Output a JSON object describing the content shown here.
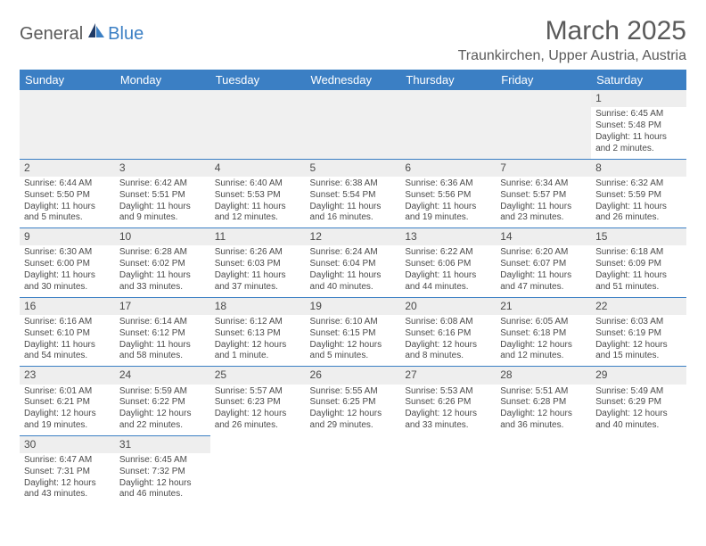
{
  "logo": {
    "text1": "General",
    "text2": "Blue"
  },
  "title": "March 2025",
  "location": "Traunkirchen, Upper Austria, Austria",
  "colors": {
    "header_bg": "#3b7fc4",
    "header_text": "#ffffff",
    "daynum_bg": "#eeeeee",
    "border": "#3b7fc4",
    "text": "#4a4a4a"
  },
  "weekdays": [
    "Sunday",
    "Monday",
    "Tuesday",
    "Wednesday",
    "Thursday",
    "Friday",
    "Saturday"
  ],
  "weeks": [
    [
      null,
      null,
      null,
      null,
      null,
      null,
      {
        "n": "1",
        "sr": "6:45 AM",
        "ss": "5:48 PM",
        "dl": "11 hours and 2 minutes."
      }
    ],
    [
      {
        "n": "2",
        "sr": "6:44 AM",
        "ss": "5:50 PM",
        "dl": "11 hours and 5 minutes."
      },
      {
        "n": "3",
        "sr": "6:42 AM",
        "ss": "5:51 PM",
        "dl": "11 hours and 9 minutes."
      },
      {
        "n": "4",
        "sr": "6:40 AM",
        "ss": "5:53 PM",
        "dl": "11 hours and 12 minutes."
      },
      {
        "n": "5",
        "sr": "6:38 AM",
        "ss": "5:54 PM",
        "dl": "11 hours and 16 minutes."
      },
      {
        "n": "6",
        "sr": "6:36 AM",
        "ss": "5:56 PM",
        "dl": "11 hours and 19 minutes."
      },
      {
        "n": "7",
        "sr": "6:34 AM",
        "ss": "5:57 PM",
        "dl": "11 hours and 23 minutes."
      },
      {
        "n": "8",
        "sr": "6:32 AM",
        "ss": "5:59 PM",
        "dl": "11 hours and 26 minutes."
      }
    ],
    [
      {
        "n": "9",
        "sr": "6:30 AM",
        "ss": "6:00 PM",
        "dl": "11 hours and 30 minutes."
      },
      {
        "n": "10",
        "sr": "6:28 AM",
        "ss": "6:02 PM",
        "dl": "11 hours and 33 minutes."
      },
      {
        "n": "11",
        "sr": "6:26 AM",
        "ss": "6:03 PM",
        "dl": "11 hours and 37 minutes."
      },
      {
        "n": "12",
        "sr": "6:24 AM",
        "ss": "6:04 PM",
        "dl": "11 hours and 40 minutes."
      },
      {
        "n": "13",
        "sr": "6:22 AM",
        "ss": "6:06 PM",
        "dl": "11 hours and 44 minutes."
      },
      {
        "n": "14",
        "sr": "6:20 AM",
        "ss": "6:07 PM",
        "dl": "11 hours and 47 minutes."
      },
      {
        "n": "15",
        "sr": "6:18 AM",
        "ss": "6:09 PM",
        "dl": "11 hours and 51 minutes."
      }
    ],
    [
      {
        "n": "16",
        "sr": "6:16 AM",
        "ss": "6:10 PM",
        "dl": "11 hours and 54 minutes."
      },
      {
        "n": "17",
        "sr": "6:14 AM",
        "ss": "6:12 PM",
        "dl": "11 hours and 58 minutes."
      },
      {
        "n": "18",
        "sr": "6:12 AM",
        "ss": "6:13 PM",
        "dl": "12 hours and 1 minute."
      },
      {
        "n": "19",
        "sr": "6:10 AM",
        "ss": "6:15 PM",
        "dl": "12 hours and 5 minutes."
      },
      {
        "n": "20",
        "sr": "6:08 AM",
        "ss": "6:16 PM",
        "dl": "12 hours and 8 minutes."
      },
      {
        "n": "21",
        "sr": "6:05 AM",
        "ss": "6:18 PM",
        "dl": "12 hours and 12 minutes."
      },
      {
        "n": "22",
        "sr": "6:03 AM",
        "ss": "6:19 PM",
        "dl": "12 hours and 15 minutes."
      }
    ],
    [
      {
        "n": "23",
        "sr": "6:01 AM",
        "ss": "6:21 PM",
        "dl": "12 hours and 19 minutes."
      },
      {
        "n": "24",
        "sr": "5:59 AM",
        "ss": "6:22 PM",
        "dl": "12 hours and 22 minutes."
      },
      {
        "n": "25",
        "sr": "5:57 AM",
        "ss": "6:23 PM",
        "dl": "12 hours and 26 minutes."
      },
      {
        "n": "26",
        "sr": "5:55 AM",
        "ss": "6:25 PM",
        "dl": "12 hours and 29 minutes."
      },
      {
        "n": "27",
        "sr": "5:53 AM",
        "ss": "6:26 PM",
        "dl": "12 hours and 33 minutes."
      },
      {
        "n": "28",
        "sr": "5:51 AM",
        "ss": "6:28 PM",
        "dl": "12 hours and 36 minutes."
      },
      {
        "n": "29",
        "sr": "5:49 AM",
        "ss": "6:29 PM",
        "dl": "12 hours and 40 minutes."
      }
    ],
    [
      {
        "n": "30",
        "sr": "6:47 AM",
        "ss": "7:31 PM",
        "dl": "12 hours and 43 minutes."
      },
      {
        "n": "31",
        "sr": "6:45 AM",
        "ss": "7:32 PM",
        "dl": "12 hours and 46 minutes."
      },
      null,
      null,
      null,
      null,
      null
    ]
  ]
}
